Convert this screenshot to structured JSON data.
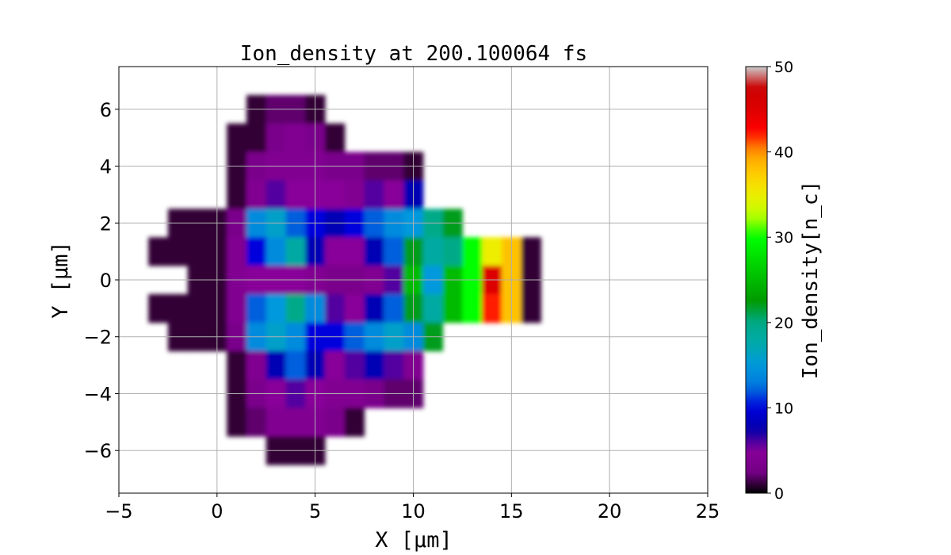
{
  "chart_data": {
    "type": "heatmap",
    "title": "Ion_density at 200.100064 fs",
    "xlabel": "X [μm]",
    "ylabel": "Y [μm]",
    "colorbar_label": "Ion_density[n_c]",
    "xlim": [
      -5,
      25
    ],
    "ylim": [
      -7.5,
      7.5
    ],
    "clim": [
      0,
      50
    ],
    "colormap": "nipy_spectral",
    "grid": true,
    "x_ticks": [
      "−5",
      "0",
      "5",
      "10",
      "15",
      "20",
      "25"
    ],
    "x_tick_values": [
      -5,
      0,
      5,
      10,
      15,
      20,
      25
    ],
    "y_ticks": [
      "−6",
      "−4",
      "−2",
      "0",
      "2",
      "4",
      "6"
    ],
    "y_tick_values": [
      -6,
      -4,
      -2,
      0,
      2,
      4,
      6
    ],
    "colorbar_ticks": [
      "0",
      "10",
      "20",
      "30",
      "40",
      "50"
    ],
    "colorbar_tick_values": [
      0,
      10,
      20,
      30,
      40,
      50
    ],
    "grid_x": [
      -3,
      -2,
      -1,
      0,
      1,
      2,
      3,
      4,
      5,
      6,
      7,
      8,
      9,
      10,
      11,
      12,
      13,
      14,
      15,
      16
    ],
    "grid_y": [
      6,
      5,
      4,
      3,
      2,
      1,
      0,
      -1,
      -2,
      -3,
      -4,
      -5,
      -6
    ],
    "values": [
      [
        null,
        null,
        null,
        null,
        null,
        1,
        2,
        2,
        1,
        null,
        null,
        null,
        null,
        null,
        null,
        null,
        null,
        null,
        null,
        null
      ],
      [
        null,
        null,
        null,
        null,
        1,
        1,
        3,
        4,
        3,
        1,
        null,
        null,
        null,
        null,
        null,
        null,
        null,
        null,
        null,
        null
      ],
      [
        null,
        null,
        null,
        null,
        1,
        3,
        4,
        4,
        4,
        3,
        3,
        2,
        2,
        1,
        null,
        null,
        null,
        null,
        null,
        null
      ],
      [
        null,
        null,
        null,
        null,
        1,
        4,
        6,
        5,
        5,
        5,
        4,
        6,
        5,
        8,
        null,
        null,
        null,
        null,
        null,
        null
      ],
      [
        null,
        1,
        1,
        1,
        3,
        14,
        16,
        12,
        10,
        8,
        10,
        12,
        14,
        15,
        20,
        22,
        null,
        null,
        null,
        null
      ],
      [
        1,
        1,
        1,
        1,
        4,
        10,
        14,
        18,
        8,
        5,
        5,
        8,
        12,
        22,
        18,
        20,
        30,
        35,
        38,
        1
      ],
      [
        null,
        null,
        1,
        1,
        4,
        5,
        5,
        5,
        4,
        3,
        3,
        4,
        6,
        25,
        15,
        25,
        30,
        45,
        38,
        1
      ],
      [
        1,
        1,
        1,
        1,
        4,
        12,
        15,
        20,
        14,
        6,
        5,
        8,
        12,
        22,
        18,
        25,
        30,
        42,
        38,
        1
      ],
      [
        null,
        1,
        1,
        1,
        3,
        14,
        16,
        14,
        10,
        10,
        12,
        14,
        16,
        14,
        22,
        null,
        null,
        null,
        null,
        null
      ],
      [
        null,
        null,
        null,
        null,
        1,
        4,
        8,
        12,
        8,
        5,
        6,
        8,
        6,
        4,
        null,
        null,
        null,
        null,
        null,
        null
      ],
      [
        null,
        null,
        null,
        null,
        1,
        3,
        5,
        6,
        5,
        4,
        4,
        3,
        2,
        2,
        null,
        null,
        null,
        null,
        null,
        null
      ],
      [
        null,
        null,
        null,
        null,
        1,
        2,
        4,
        4,
        4,
        3,
        1,
        null,
        null,
        null,
        null,
        null,
        null,
        null,
        null,
        null
      ],
      [
        null,
        null,
        null,
        null,
        null,
        null,
        1,
        1,
        1,
        null,
        null,
        null,
        null,
        null,
        null,
        null,
        null,
        null,
        null,
        null
      ]
    ]
  }
}
